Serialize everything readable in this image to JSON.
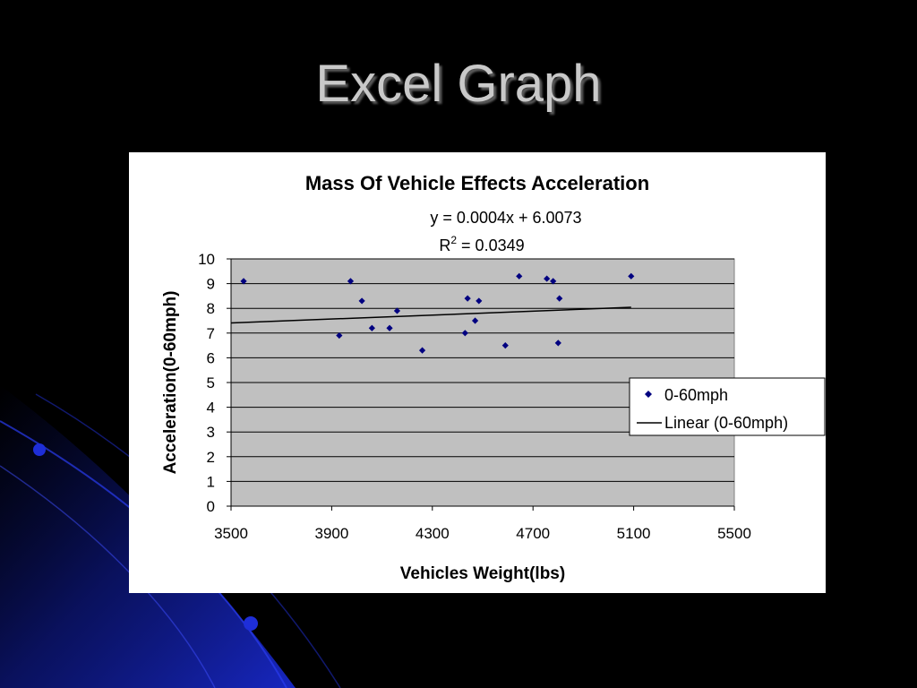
{
  "slide": {
    "title": "Excel Graph"
  },
  "colors": {
    "background": "#000000",
    "plot_area": "#c0c0c0",
    "marker": "#000080",
    "trendline": "#000000",
    "decor_blue": "#1a2bd6"
  },
  "chart_data": {
    "type": "scatter",
    "title": "Mass Of Vehicle Effects Acceleration",
    "xlabel": "Vehicles Weight(lbs)",
    "ylabel": "Acceleration(0-60mph)",
    "xlim": [
      3500,
      5500
    ],
    "ylim": [
      0,
      10
    ],
    "xticks": [
      "3500",
      "3900",
      "4300",
      "4700",
      "5100",
      "5500"
    ],
    "yticks": [
      "0",
      "1",
      "2",
      "3",
      "4",
      "5",
      "6",
      "7",
      "8",
      "9",
      "10"
    ],
    "grid": "horizontal",
    "legend_position": "right",
    "series": [
      {
        "name": "0-60mph",
        "marker": "diamond",
        "points": [
          {
            "x": 3550,
            "y": 9.1
          },
          {
            "x": 3930,
            "y": 6.9
          },
          {
            "x": 3975,
            "y": 9.1
          },
          {
            "x": 4020,
            "y": 8.3
          },
          {
            "x": 4060,
            "y": 7.2
          },
          {
            "x": 4130,
            "y": 7.2
          },
          {
            "x": 4160,
            "y": 7.9
          },
          {
            "x": 4260,
            "y": 6.3
          },
          {
            "x": 4430,
            "y": 7.0
          },
          {
            "x": 4440,
            "y": 8.4
          },
          {
            "x": 4470,
            "y": 7.5
          },
          {
            "x": 4485,
            "y": 8.3
          },
          {
            "x": 4590,
            "y": 6.5
          },
          {
            "x": 4645,
            "y": 9.3
          },
          {
            "x": 4755,
            "y": 9.2
          },
          {
            "x": 4780,
            "y": 9.1
          },
          {
            "x": 4800,
            "y": 6.6
          },
          {
            "x": 4805,
            "y": 8.4
          },
          {
            "x": 5090,
            "y": 9.3
          }
        ]
      }
    ],
    "trendline": {
      "name": "Linear (0-60mph)",
      "type": "linear",
      "slope": 0.0004,
      "intercept": 6.0073,
      "x_range": [
        3500,
        5090
      ],
      "equation_label": "y = 0.0004x + 6.0073",
      "r2_prefix": "R",
      "r2_superscript": "2",
      "r2_value": " = 0.0349"
    }
  }
}
